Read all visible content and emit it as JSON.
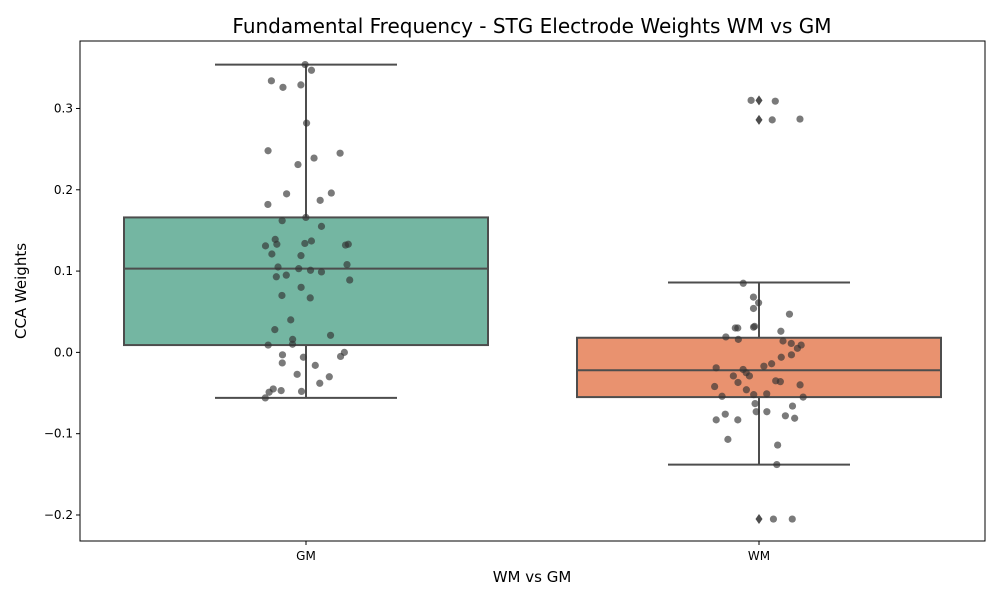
{
  "chart_data": {
    "type": "box",
    "title": "Fundamental Frequency - STG Electrode Weights WM vs GM",
    "xlabel": "WM vs GM",
    "ylabel": "CCA Weights",
    "ylim": [
      -0.232,
      0.383
    ],
    "yticks": [
      -0.2,
      -0.1,
      0.0,
      0.1,
      0.2,
      0.3
    ],
    "ytick_labels": [
      "−0.2",
      "−0.1",
      "0.0",
      "0.1",
      "0.2",
      "0.3"
    ],
    "categories": [
      "GM",
      "WM"
    ],
    "colors": {
      "GM": "#74b6a2",
      "WM": "#e9926f",
      "box_line": "#4d4d4d",
      "points": "#333333"
    },
    "boxes": [
      {
        "category": "GM",
        "whisker_low": -0.056,
        "q1": 0.009,
        "median": 0.103,
        "q3": 0.166,
        "whisker_high": 0.354,
        "outliers": []
      },
      {
        "category": "WM",
        "whisker_low": -0.138,
        "q1": -0.055,
        "median": -0.022,
        "q3": 0.018,
        "whisker_high": 0.086,
        "outliers": [
          0.31,
          0.286,
          -0.205
        ]
      }
    ],
    "points": {
      "GM": [
        0.354,
        0.347,
        0.334,
        0.326,
        0.329,
        0.282,
        0.248,
        0.245,
        0.239,
        0.231,
        0.195,
        0.196,
        0.187,
        0.182,
        0.166,
        0.162,
        0.155,
        0.139,
        0.137,
        0.134,
        0.133,
        0.131,
        0.132,
        0.133,
        0.121,
        0.119,
        0.108,
        0.105,
        0.103,
        0.101,
        0.099,
        0.095,
        0.093,
        0.089,
        0.08,
        0.07,
        0.067,
        0.04,
        0.028,
        0.021,
        0.016,
        0.01,
        0.009,
        0.0,
        -0.003,
        -0.005,
        -0.006,
        -0.013,
        -0.016,
        -0.027,
        -0.03,
        -0.038,
        -0.045,
        -0.047,
        -0.048,
        -0.049,
        -0.056
      ],
      "WM": [
        0.31,
        0.309,
        0.286,
        0.287,
        0.085,
        0.068,
        0.061,
        0.054,
        0.047,
        0.032,
        0.031,
        0.03,
        0.03,
        0.026,
        0.019,
        0.016,
        0.014,
        0.011,
        0.009,
        0.005,
        -0.003,
        -0.006,
        -0.014,
        -0.017,
        -0.019,
        -0.021,
        -0.025,
        -0.029,
        -0.029,
        -0.035,
        -0.036,
        -0.037,
        -0.04,
        -0.042,
        -0.046,
        -0.051,
        -0.052,
        -0.054,
        -0.055,
        -0.063,
        -0.066,
        -0.073,
        -0.073,
        -0.076,
        -0.078,
        -0.081,
        -0.083,
        -0.083,
        -0.107,
        -0.114,
        -0.138,
        -0.205,
        -0.205
      ]
    }
  }
}
